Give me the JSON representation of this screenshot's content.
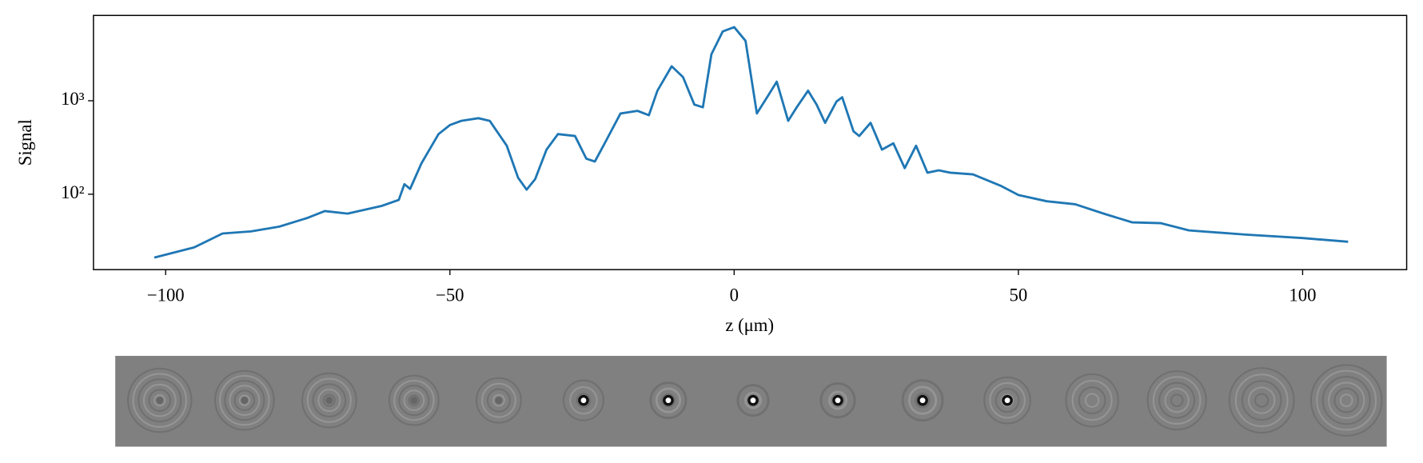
{
  "chart_data": {
    "type": "line",
    "xlabel": "z (μm)",
    "ylabel": "Signal",
    "color": "#1f77b4",
    "log_y": true,
    "xlim": [
      -112.7,
      118.3
    ],
    "xticks": [
      {
        "value": -100,
        "label": "−100"
      },
      {
        "value": -50,
        "label": "−50"
      },
      0,
      50,
      100
    ],
    "ylim": [
      15.6,
      8180
    ],
    "yticks": [
      {
        "value": 100,
        "label": "10²"
      },
      {
        "value": 1000,
        "label": "10³"
      }
    ],
    "x": [
      -102,
      -95,
      -90,
      -85,
      -80,
      -75,
      -72,
      -68,
      -62,
      -59,
      -58,
      -57,
      -55,
      -52,
      -50,
      -48,
      -45,
      -43,
      -40,
      -38,
      -36.5,
      -35,
      -33,
      -31,
      -28,
      -26,
      -24.5,
      -23,
      -20,
      -17,
      -15,
      -13.5,
      -11,
      -9,
      -7,
      -5.5,
      -4,
      -2,
      0,
      2,
      4,
      6,
      7.5,
      9.5,
      11,
      13,
      14.5,
      16,
      18,
      19,
      21,
      22,
      24,
      26,
      28,
      30,
      32,
      34,
      36,
      38,
      42,
      47,
      50,
      55,
      60,
      65,
      70,
      75,
      80,
      90,
      100,
      108
    ],
    "values": [
      21,
      27,
      38,
      40,
      45,
      56,
      66,
      62,
      75,
      87,
      128,
      114,
      214,
      440,
      550,
      610,
      650,
      610,
      330,
      150,
      112,
      145,
      300,
      440,
      420,
      240,
      224,
      330,
      730,
      780,
      700,
      1280,
      2340,
      1790,
      910,
      850,
      3140,
      5520,
      6130,
      4370,
      730,
      1140,
      1600,
      610,
      850,
      1280,
      910,
      580,
      980,
      1090,
      470,
      420,
      580,
      300,
      350,
      190,
      330,
      170,
      180,
      170,
      163,
      122,
      98,
      84,
      78,
      62,
      50,
      49,
      41,
      37,
      34,
      31
    ]
  }
}
